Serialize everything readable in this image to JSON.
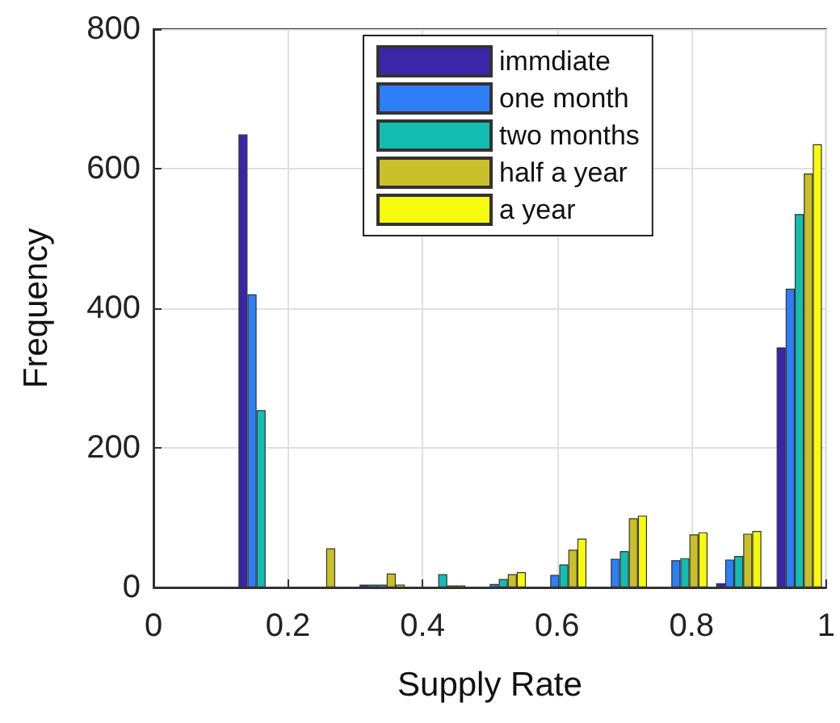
{
  "chart_data": {
    "type": "bar",
    "xlabel": "Supply Rate",
    "ylabel": "Frequency",
    "x": [
      0.16,
      0.25,
      0.34,
      0.43,
      0.52,
      0.61,
      0.7,
      0.79,
      0.87,
      0.96
    ],
    "series": [
      {
        "name": "immdiate",
        "color": "#3b25a8",
        "values": [
          649,
          null,
          4,
          null,
          null,
          null,
          null,
          null,
          6,
          344
        ]
      },
      {
        "name": "one month",
        "color": "#2e7ef7",
        "values": [
          420,
          null,
          4,
          null,
          5,
          18,
          41,
          39,
          40,
          428
        ]
      },
      {
        "name": "two months",
        "color": "#14bdb2",
        "values": [
          254,
          null,
          4,
          19,
          12,
          33,
          52,
          42,
          45,
          535
        ]
      },
      {
        "name": "half a year",
        "color": "#c9c029",
        "values": [
          null,
          56,
          20,
          3,
          19,
          54,
          99,
          76,
          77,
          593
        ]
      },
      {
        "name": "a year",
        "color": "#f8fa0d",
        "values": [
          null,
          null,
          4,
          3,
          22,
          70,
          103,
          79,
          81,
          635
        ]
      }
    ],
    "xlim": [
      0,
      1
    ],
    "xticks": [
      0,
      0.2,
      0.4,
      0.6,
      0.8,
      1
    ],
    "ylim": [
      0,
      800
    ],
    "yticks": [
      0,
      200,
      400,
      600,
      800
    ],
    "grid": true,
    "legend": "top"
  }
}
